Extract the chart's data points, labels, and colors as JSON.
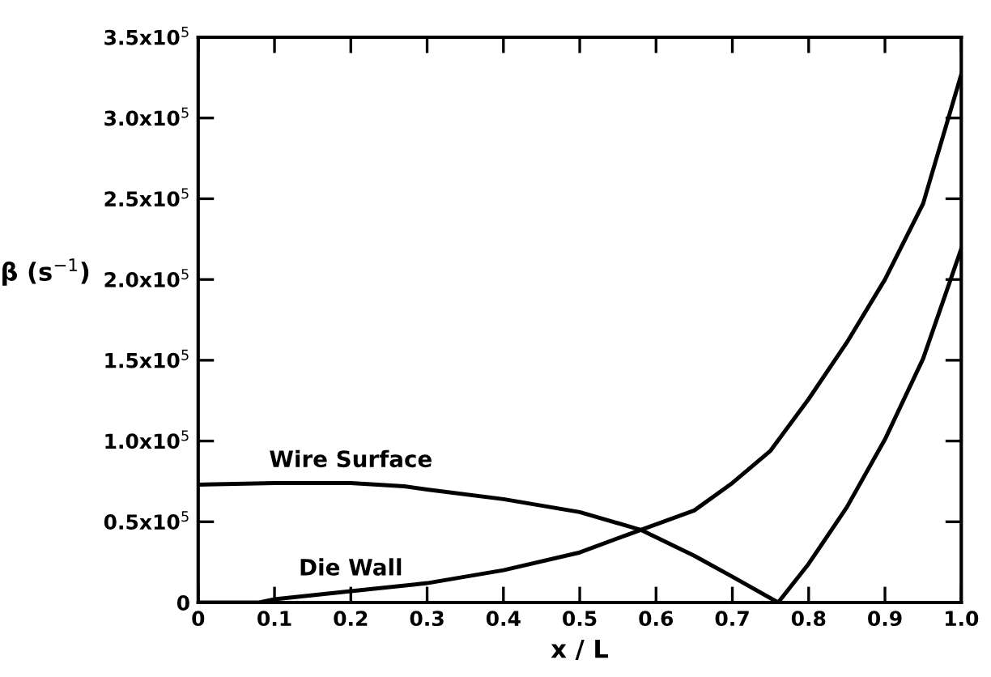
{
  "chart_data": {
    "type": "line",
    "xlabel": "x / L",
    "ylabel": "β (s$^{−1}$)",
    "xlim": [
      0,
      1.0
    ],
    "xticks": [
      0,
      0.1,
      0.2,
      0.3,
      0.4,
      0.5,
      0.6,
      0.7,
      0.8,
      0.9,
      {
        "value": 1.0,
        "label": "1.0"
      }
    ],
    "ylim": [
      0,
      350000
    ],
    "yticks": [
      {
        "value": 0,
        "label": "0"
      },
      {
        "value": 50000,
        "label": "0.5x10$^{5}$"
      },
      {
        "value": 100000,
        "label": "1.0x10$^{5}$"
      },
      {
        "value": 150000,
        "label": "1.5x10$^{5}$"
      },
      {
        "value": 200000,
        "label": "2.0x10$^{5}$"
      },
      {
        "value": 250000,
        "label": "2.5x10$^{5}$"
      },
      {
        "value": 300000,
        "label": "3.0x10$^{5}$"
      },
      {
        "value": 350000,
        "label": "3.5x10$^{5}$"
      }
    ],
    "grid": false,
    "legend": false,
    "marker": "none",
    "line_style": "solid",
    "series": [
      {
        "color": "#000000",
        "x": [
          0,
          0.1,
          0.2,
          0.27,
          0.3,
          0.4,
          0.5,
          0.58,
          0.65,
          0.7,
          0.76,
          0.8,
          0.85,
          0.9,
          0.95,
          1.0
        ],
        "values": [
          73000,
          74000,
          74000,
          72000,
          70000,
          64000,
          56000,
          45000,
          29000,
          16000,
          0,
          24000,
          59000,
          101000,
          151000,
          219000
        ]
      },
      {
        "color": "#000000",
        "x": [
          0,
          0.08,
          0.1,
          0.2,
          0.3,
          0.4,
          0.5,
          0.58,
          0.65,
          0.7,
          0.75,
          0.8,
          0.85,
          0.9,
          0.95,
          1.0
        ],
        "values": [
          0,
          0,
          2000,
          7000,
          12000,
          20000,
          31000,
          45000,
          57000,
          74000,
          94000,
          126000,
          161000,
          200000,
          247000,
          327000
        ]
      }
    ],
    "annotations": [
      {
        "text": "Wire Surface",
        "x": 0.2,
        "y": 74000
      },
      {
        "text": "Die Wall",
        "x": 0.2,
        "y": 7000
      }
    ]
  }
}
